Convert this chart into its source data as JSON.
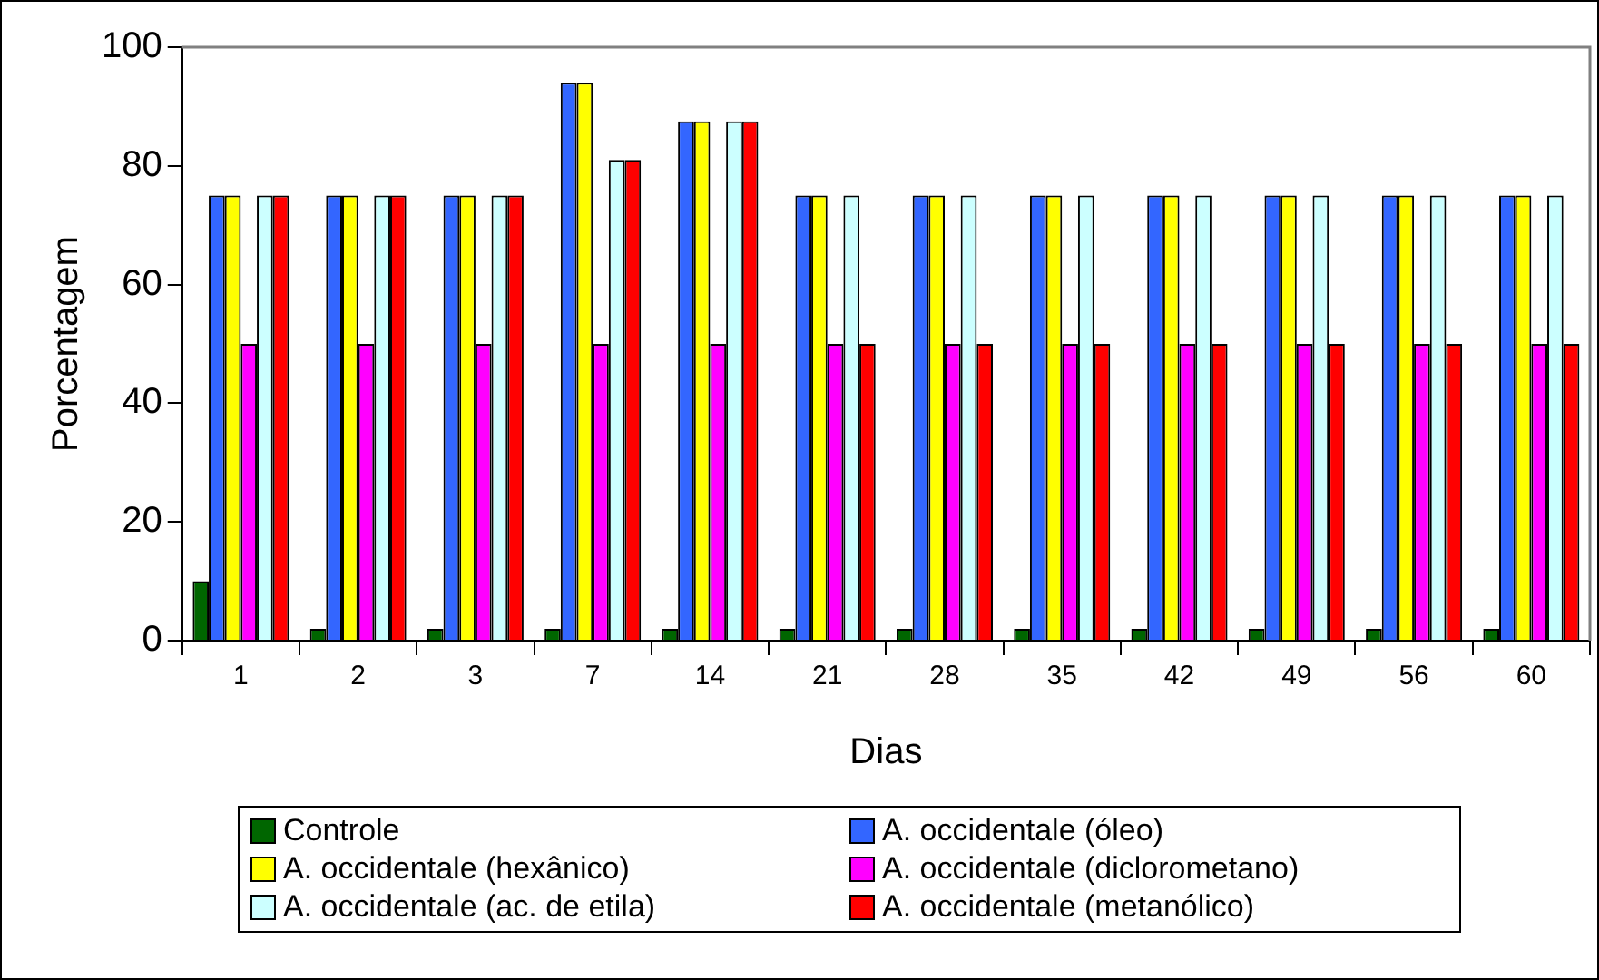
{
  "chart_data": {
    "type": "bar",
    "xlabel": "Dias",
    "ylabel": "Porcentagem",
    "categories": [
      "1",
      "2",
      "3",
      "7",
      "14",
      "21",
      "28",
      "35",
      "42",
      "49",
      "56",
      "60"
    ],
    "series": [
      {
        "name": "Controle",
        "color": "#006600",
        "values": [
          10,
          2,
          2,
          2,
          2,
          2,
          2,
          2,
          2,
          2,
          2,
          2
        ]
      },
      {
        "name": "A. occidentale (óleo)",
        "color": "#3366ff",
        "values": [
          75,
          75,
          75,
          94,
          87.5,
          75,
          75,
          75,
          75,
          75,
          75,
          75
        ]
      },
      {
        "name": "A. occidentale (hexânico)",
        "color": "#ffff00",
        "values": [
          75,
          75,
          75,
          94,
          87.5,
          75,
          75,
          75,
          75,
          75,
          75,
          75
        ]
      },
      {
        "name": "A. occidentale (diclorometano)",
        "color": "#ff00ff",
        "values": [
          50,
          50,
          50,
          50,
          50,
          50,
          50,
          50,
          50,
          50,
          50,
          50
        ]
      },
      {
        "name": "A. occidentale (ac. de etila)",
        "color": "#ccffff",
        "values": [
          75,
          75,
          75,
          81,
          87.5,
          75,
          75,
          75,
          75,
          75,
          75,
          75
        ]
      },
      {
        "name": "A. occidentale (metanólico)",
        "color": "#ff0000",
        "values": [
          75,
          75,
          75,
          81,
          87.5,
          50,
          50,
          50,
          50,
          50,
          50,
          50
        ]
      }
    ],
    "ylim": [
      0,
      100
    ],
    "yticks": [
      0,
      20,
      40,
      60,
      80,
      100
    ],
    "grid": false,
    "legend": "bottom"
  }
}
